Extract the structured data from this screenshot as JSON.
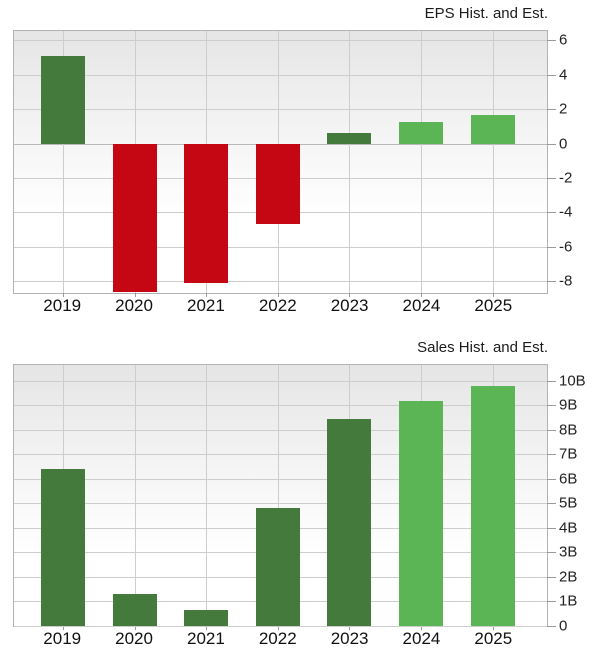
{
  "colors": {
    "historical_green": "#447A3C",
    "estimate_green": "#5BB554",
    "negative_red": "#C40712",
    "grid": "#CDCDCD",
    "frame": "#B3B3B3",
    "tick": "#9A9A9A",
    "title_text": "#1B1B1B",
    "axis_text": "#222222",
    "plot_bg_top": "#E5E5E5",
    "plot_bg_bottom": "#FFFFFF"
  },
  "chart_data": [
    {
      "type": "bar",
      "title": "EPS Hist. and Est.",
      "categories": [
        "2019",
        "2020",
        "2021",
        "2022",
        "2023",
        "2024",
        "2025"
      ],
      "values": [
        5.1,
        -8.65,
        -8.1,
        -4.7,
        0.6,
        1.25,
        1.65
      ],
      "bar_colors": [
        "#447A3C",
        "#C40712",
        "#C40712",
        "#C40712",
        "#447A3C",
        "#5BB554",
        "#5BB554"
      ],
      "xlabel": "",
      "ylabel": "",
      "ylim": [
        -8.7,
        6.55
      ],
      "yticks": [
        {
          "value": 6,
          "label": "6"
        },
        {
          "value": 4,
          "label": "4"
        },
        {
          "value": 2,
          "label": "2"
        },
        {
          "value": 0,
          "label": "0"
        },
        {
          "value": -2,
          "label": "-2"
        },
        {
          "value": -4,
          "label": "-4"
        },
        {
          "value": -6,
          "label": "-6"
        },
        {
          "value": -8,
          "label": "-8"
        }
      ],
      "grid": true,
      "legend": "none",
      "axis_side": "right"
    },
    {
      "type": "bar",
      "title": "Sales Hist. and Est.",
      "categories": [
        "2019",
        "2020",
        "2021",
        "2022",
        "2023",
        "2024",
        "2025"
      ],
      "values": [
        6.4,
        1.3,
        0.65,
        4.8,
        8.45,
        9.2,
        9.8
      ],
      "unit": "B",
      "bar_colors": [
        "#447A3C",
        "#447A3C",
        "#447A3C",
        "#447A3C",
        "#447A3C",
        "#5BB554",
        "#5BB554"
      ],
      "xlabel": "",
      "ylabel": "",
      "ylim": [
        0,
        10.65
      ],
      "yticks": [
        {
          "value": 10,
          "label": "10B"
        },
        {
          "value": 9,
          "label": "9B"
        },
        {
          "value": 8,
          "label": "8B"
        },
        {
          "value": 7,
          "label": "7B"
        },
        {
          "value": 6,
          "label": "6B"
        },
        {
          "value": 5,
          "label": "5B"
        },
        {
          "value": 4,
          "label": "4B"
        },
        {
          "value": 3,
          "label": "3B"
        },
        {
          "value": 2,
          "label": "2B"
        },
        {
          "value": 1,
          "label": "1B"
        },
        {
          "value": 0,
          "label": "0"
        }
      ],
      "grid": true,
      "legend": "none",
      "axis_side": "right"
    }
  ]
}
